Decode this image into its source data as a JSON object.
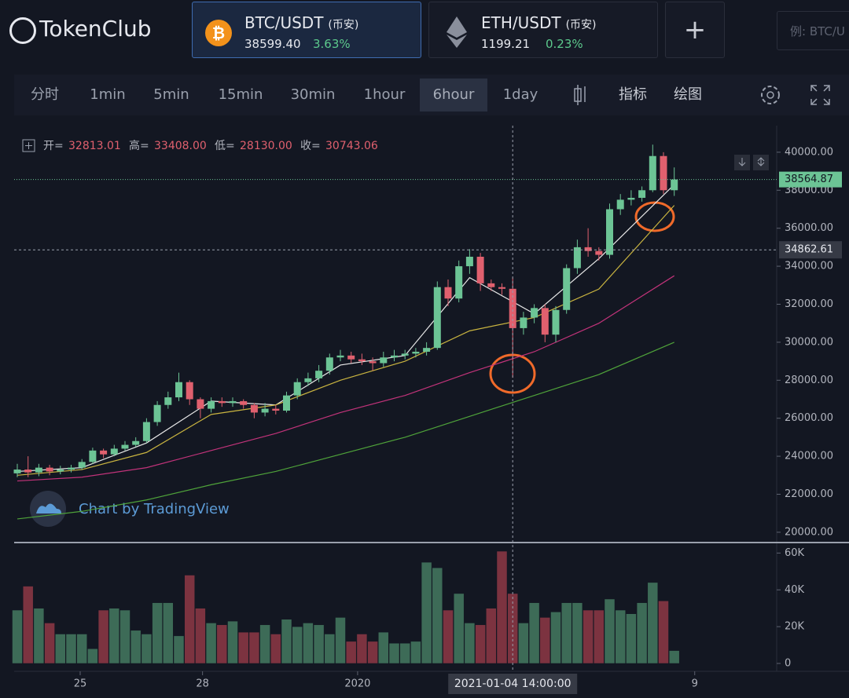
{
  "header": {
    "logo": "TokenClub",
    "tickers": [
      {
        "pair": "BTC/USDT",
        "exchange": "(币安)",
        "price": "38599.40",
        "change": "3.63%"
      },
      {
        "pair": "ETH/USDT",
        "exchange": "(币安)",
        "price": "1199.21",
        "change": "0.23%"
      }
    ],
    "add_button": "+",
    "search_placeholder": "例: BTC/U"
  },
  "toolbar": {
    "intervals": [
      "分时",
      "1min",
      "5min",
      "15min",
      "30min",
      "1hour",
      "6hour",
      "1day"
    ],
    "active": "6hour",
    "tools": [
      "指标",
      "绘图"
    ]
  },
  "watermark": "Chart by TradingView",
  "chart_data": {
    "type": "candlestick",
    "up_color": "#6cc495",
    "down_color": "#e0606e",
    "ohlc_legend": [
      {
        "label": "开=",
        "value": "32813.01"
      },
      {
        "label": "高=",
        "value": "33408.00"
      },
      {
        "label": "低=",
        "value": "28130.00"
      },
      {
        "label": "收=",
        "value": "30743.06"
      }
    ],
    "open": [
      23100,
      23300,
      23150,
      23400,
      23200,
      23300,
      23400,
      23700,
      24300,
      24100,
      24400,
      24600,
      24800,
      25800,
      26700,
      27100,
      27900,
      27000,
      26500,
      26900,
      26800,
      26900,
      26700,
      26300,
      26500,
      26400,
      27200,
      27900,
      28100,
      28500,
      29200,
      29300,
      29100,
      29000,
      28900,
      29200,
      29300,
      29400,
      29500,
      29700,
      32900,
      32300,
      34000,
      34500,
      33100,
      32900,
      32813.01,
      30743.06,
      31300,
      31800,
      30400,
      31700,
      33900,
      35000,
      34800,
      34600,
      37000,
      37500,
      37600,
      38000,
      39800,
      38000
    ],
    "high": [
      23600,
      24000,
      23600,
      23550,
      23500,
      23550,
      23850,
      24450,
      24400,
      24600,
      24800,
      25000,
      26000,
      26900,
      27400,
      28400,
      28000,
      27100,
      27100,
      27100,
      27100,
      27000,
      26800,
      26800,
      26700,
      27400,
      28100,
      28400,
      28800,
      29400,
      29600,
      29500,
      29400,
      29200,
      29500,
      29600,
      29600,
      29700,
      30000,
      33200,
      33300,
      34300,
      34900,
      34700,
      33300,
      33100,
      33408,
      31600,
      32000,
      32000,
      31900,
      34100,
      35400,
      36000,
      35000,
      37300,
      37800,
      38000,
      38200,
      40400,
      40000,
      39200
    ],
    "low": [
      22900,
      22900,
      22950,
      23000,
      23050,
      23150,
      23300,
      23600,
      23900,
      24000,
      24300,
      24500,
      24700,
      25600,
      26500,
      26900,
      26700,
      26000,
      26300,
      26600,
      26600,
      26500,
      26000,
      26100,
      26200,
      26300,
      27000,
      27700,
      27900,
      28300,
      29000,
      28900,
      28800,
      28500,
      28700,
      29000,
      29100,
      29200,
      29300,
      29600,
      31900,
      32100,
      33600,
      32700,
      32700,
      32500,
      28130,
      30400,
      31000,
      30000,
      30000,
      31500,
      33600,
      34500,
      34300,
      34400,
      36700,
      37200,
      37400,
      37900,
      37800,
      37700
    ],
    "close": [
      23300,
      23150,
      23400,
      23200,
      23300,
      23400,
      23700,
      24300,
      24100,
      24400,
      24600,
      24800,
      25800,
      26700,
      27100,
      27900,
      27000,
      26500,
      26900,
      26800,
      26900,
      26700,
      26300,
      26500,
      26400,
      27200,
      27900,
      28100,
      28500,
      29200,
      29300,
      29100,
      29000,
      28900,
      29200,
      29300,
      29400,
      29500,
      29700,
      32900,
      32300,
      34000,
      34500,
      33100,
      32900,
      32813.01,
      30743.06,
      31300,
      31800,
      30400,
      31700,
      33900,
      35000,
      34800,
      34600,
      37000,
      37500,
      37600,
      38000,
      39800,
      38000,
      38564.87
    ],
    "ma_lines": [
      {
        "color": "#e8e8e8",
        "x": [
          0,
          6,
          12,
          18,
          24,
          30,
          36,
          42,
          48,
          54,
          61
        ],
        "values": [
          23200,
          23400,
          24700,
          26900,
          26700,
          28800,
          29300,
          33400,
          31500,
          34400,
          38300
        ]
      },
      {
        "color": "#c9b440",
        "x": [
          0,
          6,
          12,
          18,
          24,
          30,
          36,
          42,
          48,
          54,
          61
        ],
        "values": [
          23000,
          23300,
          24200,
          26200,
          26700,
          28000,
          29000,
          30600,
          31300,
          32800,
          37200
        ]
      },
      {
        "color": "#c2337a",
        "x": [
          0,
          6,
          12,
          18,
          24,
          30,
          36,
          42,
          48,
          54,
          61
        ],
        "values": [
          22700,
          22900,
          23400,
          24300,
          25200,
          26300,
          27200,
          28400,
          29500,
          31000,
          33500
        ]
      },
      {
        "color": "#4fa33a",
        "x": [
          0,
          6,
          12,
          18,
          24,
          30,
          36,
          42,
          48,
          54,
          61
        ],
        "values": [
          20700,
          21100,
          21700,
          22500,
          23200,
          24100,
          25000,
          26100,
          27200,
          28300,
          30000
        ]
      }
    ],
    "ylim": [
      19500,
      41400
    ],
    "yticks": [
      {
        "value": 20000,
        "label": "20000.00"
      },
      {
        "value": 22000,
        "label": "22000.00"
      },
      {
        "value": 24000,
        "label": "24000.00"
      },
      {
        "value": 26000,
        "label": "26000.00"
      },
      {
        "value": 28000,
        "label": "28000.00"
      },
      {
        "value": 30000,
        "label": "30000.00"
      },
      {
        "value": 32000,
        "label": "32000.00"
      },
      {
        "value": 34000,
        "label": "34000.00"
      },
      {
        "value": 36000,
        "label": "36000.00"
      },
      {
        "value": 38000,
        "label": "38000.00"
      },
      {
        "value": 40000,
        "label": "40000.00"
      }
    ],
    "last_price": {
      "value": 38564.87,
      "label": "38564.87"
    },
    "crosshair": {
      "x": 46,
      "time": "2021-01-04 14:00:00",
      "price": {
        "value": 34862.61,
        "label": "34862.61"
      }
    },
    "xticks": [
      {
        "value": 5.84,
        "label": "25"
      },
      {
        "value": 17.2,
        "label": "28"
      },
      {
        "value": 31.6,
        "label": "2020"
      },
      {
        "value": 62.9,
        "label": "9"
      }
    ],
    "volume": {
      "up_color": "#3d6b57",
      "down_color": "#7c3340",
      "values": [
        29,
        42,
        30,
        22,
        16,
        16,
        16,
        8,
        29,
        30,
        29,
        18,
        16,
        33,
        33,
        15,
        48,
        30,
        22,
        21,
        23,
        17,
        17,
        21,
        16,
        24,
        20,
        22,
        21,
        16,
        25,
        12,
        16,
        12,
        17,
        11,
        11,
        12,
        55,
        52,
        29,
        38,
        22,
        21,
        30,
        61,
        38,
        22,
        33,
        25,
        28,
        33,
        33,
        29,
        29,
        35,
        29,
        27,
        33,
        44,
        34,
        7
      ],
      "ylim": [
        0,
        64
      ],
      "yticks": [
        0,
        {
          "value": 20,
          "label": "20K"
        },
        {
          "value": 40,
          "label": "40K"
        },
        {
          "value": 60,
          "label": "60K"
        }
      ]
    }
  }
}
